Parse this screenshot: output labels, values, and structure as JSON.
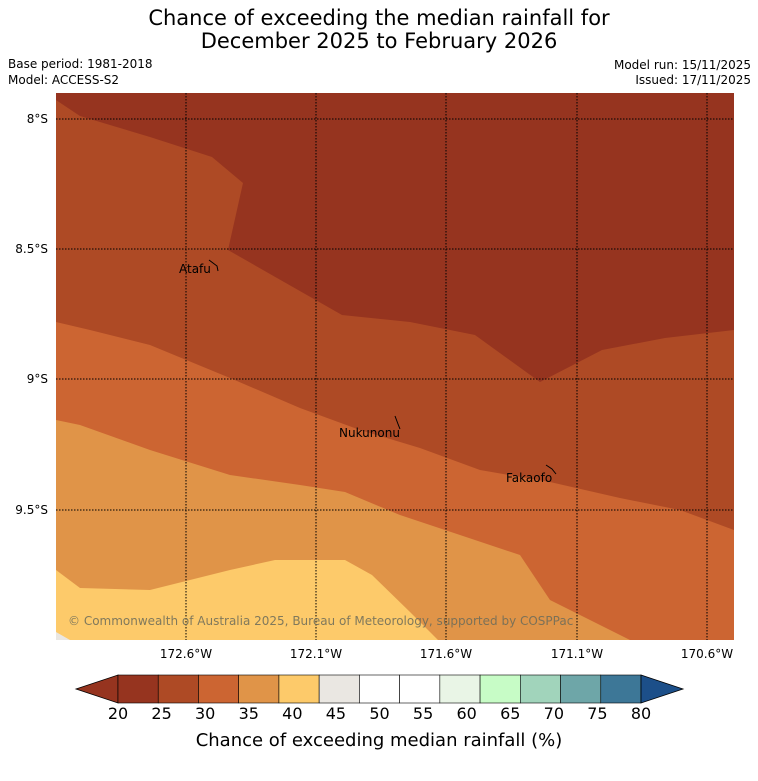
{
  "title_line1": "Chance of exceeding the median rainfall for",
  "title_line2": "December 2025 to February 2026",
  "base_period": "Base period: 1981-2018",
  "model": "Model: ACCESS-S2",
  "model_run": "Model run: 15/11/2025",
  "issued": "Issued: 17/11/2025",
  "lat_labels": [
    "8°S",
    "8.5°S",
    "9°S",
    "9.5°S"
  ],
  "lon_labels": [
    "172.6°W",
    "172.1°W",
    "171.6°W",
    "171.1°W",
    "170.6°W"
  ],
  "places": {
    "atafu": "Atafu",
    "nukunonu": "Nukunonu",
    "fakaofo": "Fakaofo"
  },
  "copyright": "© Commonwealth of Australia 2025, Bureau of Meteorology, supported by COSPPac",
  "colorbar": {
    "label": "Chance of exceeding median rainfall (%)",
    "ticks": [
      "20",
      "25",
      "30",
      "35",
      "40",
      "45",
      "50",
      "55",
      "60",
      "65",
      "70",
      "75",
      "80"
    ],
    "colors": [
      "#96341f",
      "#ae4a25",
      "#cc6532",
      "#e09448",
      "#fdca6a",
      "#eae7e2",
      "#ffffff",
      "#ffffff",
      "#e9f5e6",
      "#c7fcc6",
      "#a1d4bb",
      "#6ea6a8",
      "#3d7797"
    ],
    "under_color": "#96341f",
    "over_color": "#1c4f89"
  }
}
